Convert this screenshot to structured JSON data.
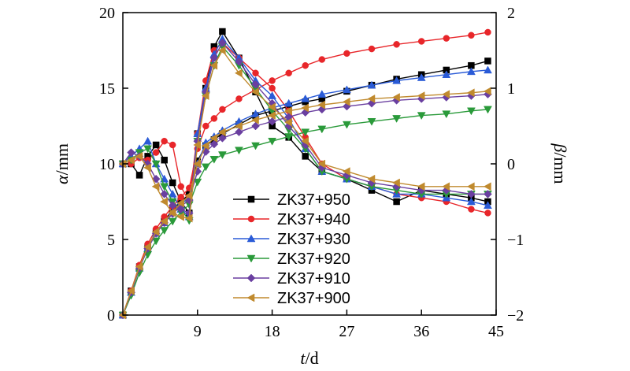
{
  "chart_data": {
    "type": "line",
    "x": [
      0,
      1,
      2,
      3,
      4,
      5,
      6,
      7,
      8,
      9,
      10,
      11,
      12,
      14,
      16,
      18,
      20,
      22,
      24,
      27,
      30,
      33,
      36,
      39,
      42,
      44
    ],
    "xlim": [
      0,
      45
    ],
    "x_ticks": [
      9,
      18,
      27,
      36,
      45
    ],
    "xlabel_var": "t",
    "xlabel_unit": "/d",
    "left_axis": {
      "label_var": "α",
      "label_unit": "/mm",
      "ylim": [
        0,
        20
      ],
      "ticks": [
        0,
        5,
        10,
        15,
        20
      ]
    },
    "right_axis": {
      "label_var": "β",
      "label_unit": "/mm",
      "ylim": [
        -2,
        2
      ],
      "ticks": [
        -2,
        -1,
        0,
        1,
        2
      ],
      "tick_labels": [
        "−2",
        "−1",
        "0",
        "1",
        "2"
      ]
    },
    "series": [
      {
        "name": "ZK37+950",
        "color": "#000000",
        "marker": "square",
        "alpha": [
          0,
          1.6,
          3.2,
          4.5,
          5.5,
          6.2,
          7.0,
          7.5,
          8.0,
          10.2,
          11.2,
          11.6,
          12.0,
          12.6,
          13.2,
          13.5,
          13.8,
          14.1,
          14.3,
          14.8,
          15.2,
          15.6,
          15.9,
          16.2,
          16.5,
          16.8
        ],
        "beta": [
          0,
          0,
          -0.15,
          0.1,
          0.25,
          0.05,
          -0.25,
          -0.5,
          -0.65,
          0.4,
          1.0,
          1.55,
          1.75,
          1.4,
          0.95,
          0.5,
          0.35,
          0.1,
          -0.1,
          -0.2,
          -0.35,
          -0.5,
          -0.35,
          -0.4,
          -0.45,
          -0.5
        ]
      },
      {
        "name": "ZK37+940",
        "color": "#e8262a",
        "marker": "circle",
        "alpha": [
          0,
          1.6,
          3.3,
          4.7,
          5.7,
          6.5,
          7.2,
          7.8,
          8.4,
          11.0,
          12.5,
          13.0,
          13.6,
          14.3,
          14.9,
          15.5,
          16.0,
          16.5,
          16.9,
          17.3,
          17.6,
          17.9,
          18.1,
          18.3,
          18.5,
          18.7
        ],
        "beta": [
          0,
          0,
          0.08,
          0.05,
          0.15,
          0.3,
          0.25,
          -0.3,
          -0.5,
          0.4,
          1.1,
          1.5,
          1.6,
          1.4,
          1.2,
          1.0,
          0.7,
          0.35,
          0.0,
          -0.2,
          -0.3,
          -0.4,
          -0.45,
          -0.5,
          -0.6,
          -0.65
        ]
      },
      {
        "name": "ZK37+930",
        "color": "#2a5bd7",
        "marker": "triangle-up",
        "alpha": [
          0,
          1.5,
          3.1,
          4.4,
          5.4,
          6.1,
          6.8,
          7.3,
          7.8,
          10.0,
          11.4,
          11.8,
          12.2,
          12.8,
          13.3,
          13.7,
          14.0,
          14.3,
          14.6,
          14.9,
          15.2,
          15.5,
          15.7,
          15.9,
          16.1,
          16.2
        ],
        "beta": [
          0,
          0.1,
          0.2,
          0.3,
          0.0,
          -0.2,
          -0.4,
          -0.6,
          -0.7,
          0.4,
          1.0,
          1.45,
          1.65,
          1.4,
          1.1,
          0.9,
          0.6,
          0.2,
          -0.1,
          -0.2,
          -0.3,
          -0.4,
          -0.4,
          -0.45,
          -0.5,
          -0.55
        ]
      },
      {
        "name": "ZK37+920",
        "color": "#2a9a3a",
        "marker": "triangle-down",
        "alpha": [
          0,
          1.3,
          2.8,
          4.0,
          4.9,
          5.6,
          6.2,
          6.8,
          7.3,
          8.8,
          9.8,
          10.3,
          10.6,
          10.9,
          11.2,
          11.5,
          11.8,
          12.1,
          12.3,
          12.6,
          12.8,
          13.0,
          13.2,
          13.3,
          13.5,
          13.6
        ],
        "beta": [
          0,
          0.05,
          0.15,
          0.2,
          0.0,
          -0.3,
          -0.5,
          -0.6,
          -0.75,
          0.3,
          0.9,
          1.3,
          1.55,
          1.3,
          1.0,
          0.7,
          0.45,
          0.2,
          -0.1,
          -0.2,
          -0.3,
          -0.35,
          -0.4,
          -0.4,
          -0.4,
          -0.4
        ]
      },
      {
        "name": "ZK37+910",
        "color": "#6a3fa0",
        "marker": "diamond",
        "alpha": [
          0,
          1.5,
          3.1,
          4.4,
          5.4,
          6.1,
          6.7,
          7.2,
          7.6,
          9.5,
          10.8,
          11.3,
          11.7,
          12.1,
          12.5,
          12.8,
          13.1,
          13.4,
          13.6,
          13.8,
          14.0,
          14.2,
          14.3,
          14.4,
          14.5,
          14.6
        ],
        "beta": [
          0,
          0.15,
          0.1,
          0.0,
          -0.2,
          -0.4,
          -0.55,
          -0.6,
          -0.65,
          0.3,
          0.95,
          1.4,
          1.6,
          1.35,
          1.05,
          0.8,
          0.5,
          0.25,
          -0.05,
          -0.15,
          -0.25,
          -0.3,
          -0.35,
          -0.35,
          -0.4,
          -0.4
        ]
      },
      {
        "name": "ZK37+900",
        "color": "#c08a2e",
        "marker": "triangle-left",
        "alpha": [
          0,
          1.6,
          3.2,
          4.5,
          5.5,
          6.2,
          6.8,
          7.4,
          7.9,
          10.0,
          11.2,
          11.7,
          12.1,
          12.5,
          12.9,
          13.2,
          13.5,
          13.7,
          13.9,
          14.1,
          14.3,
          14.4,
          14.5,
          14.6,
          14.7,
          14.8
        ],
        "beta": [
          0,
          0.05,
          0.1,
          -0.05,
          -0.3,
          -0.5,
          -0.65,
          -0.7,
          -0.72,
          0.25,
          0.9,
          1.3,
          1.5,
          1.2,
          0.95,
          0.75,
          0.55,
          0.3,
          0.0,
          -0.1,
          -0.2,
          -0.25,
          -0.3,
          -0.3,
          -0.3,
          -0.3
        ]
      }
    ],
    "legend_position": "center-left"
  }
}
